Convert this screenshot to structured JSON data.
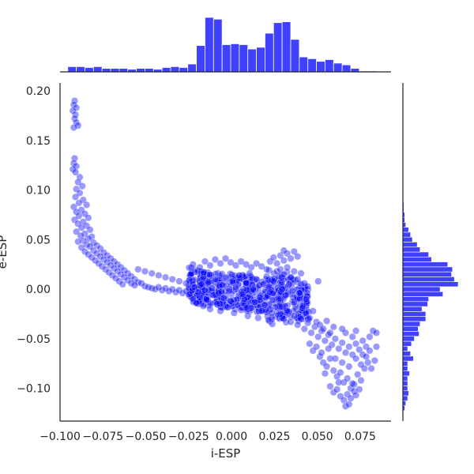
{
  "chart_data": {
    "type": "scatter",
    "subtype": "jointplot with marginal histograms",
    "title": "",
    "xlabel": "i-ESP",
    "ylabel": "e-ESP",
    "xlim": [
      -0.1,
      0.093
    ],
    "ylim": [
      -0.133,
      0.208
    ],
    "xticks": [
      -0.1,
      -0.075,
      -0.05,
      -0.025,
      0.0,
      0.025,
      0.05,
      0.075
    ],
    "xtick_labels": [
      "−0.100",
      "−0.075",
      "−0.050",
      "−0.025",
      "0.000",
      "0.025",
      "0.050",
      "0.075"
    ],
    "yticks": [
      -0.1,
      -0.05,
      0.0,
      0.05,
      0.1,
      0.15,
      0.2
    ],
    "ytick_labels": [
      "−0.10",
      "−0.05",
      "0.00",
      "0.05",
      "0.10",
      "0.15",
      "0.20"
    ],
    "grid": false,
    "legend": "none",
    "colors": {
      "points": "#0000ff",
      "bars": "#0000ff",
      "bar_edge": "#ffffff",
      "axes": "#262626"
    },
    "marker_alpha": 0.4,
    "points": [
      [
        -0.0915,
        0.19
      ],
      [
        -0.092,
        0.186
      ],
      [
        -0.0905,
        0.183
      ],
      [
        -0.0925,
        0.18
      ],
      [
        -0.091,
        0.176
      ],
      [
        -0.0915,
        0.172
      ],
      [
        -0.0905,
        0.168
      ],
      [
        -0.0895,
        0.165
      ],
      [
        -0.092,
        0.163
      ],
      [
        -0.0915,
        0.132
      ],
      [
        -0.092,
        0.127
      ],
      [
        -0.0905,
        0.124
      ],
      [
        -0.0925,
        0.121
      ],
      [
        -0.091,
        0.118
      ],
      [
        -0.0885,
        0.113
      ],
      [
        -0.0895,
        0.108
      ],
      [
        -0.087,
        0.104
      ],
      [
        -0.0905,
        0.101
      ],
      [
        -0.0885,
        0.097
      ],
      [
        -0.091,
        0.093
      ],
      [
        -0.0865,
        0.09
      ],
      [
        -0.089,
        0.087
      ],
      [
        -0.0845,
        0.085
      ],
      [
        -0.092,
        0.083
      ],
      [
        -0.0875,
        0.08
      ],
      [
        -0.0905,
        0.078
      ],
      [
        -0.0855,
        0.076
      ],
      [
        -0.089,
        0.074
      ],
      [
        -0.0835,
        0.072
      ],
      [
        -0.0915,
        0.07
      ],
      [
        -0.0865,
        0.068
      ],
      [
        -0.0895,
        0.066
      ],
      [
        -0.0845,
        0.064
      ],
      [
        -0.0875,
        0.062
      ],
      [
        -0.0825,
        0.06
      ],
      [
        -0.0905,
        0.058
      ],
      [
        -0.0855,
        0.056
      ],
      [
        -0.088,
        0.054
      ],
      [
        -0.0815,
        0.053
      ],
      [
        -0.0835,
        0.051
      ],
      [
        -0.0865,
        0.049
      ],
      [
        -0.0895,
        0.048
      ],
      [
        -0.0805,
        0.047
      ],
      [
        -0.0845,
        0.045
      ],
      [
        -0.0785,
        0.044
      ],
      [
        -0.0825,
        0.043
      ],
      [
        -0.0875,
        0.042
      ],
      [
        -0.0765,
        0.041
      ],
      [
        -0.0805,
        0.039
      ],
      [
        -0.0855,
        0.038
      ],
      [
        -0.0745,
        0.037
      ],
      [
        -0.0785,
        0.036
      ],
      [
        -0.0835,
        0.035
      ],
      [
        -0.0725,
        0.034
      ],
      [
        -0.0765,
        0.033
      ],
      [
        -0.0815,
        0.032
      ],
      [
        -0.0705,
        0.031
      ],
      [
        -0.0745,
        0.03
      ],
      [
        -0.0795,
        0.029
      ],
      [
        -0.0685,
        0.028
      ],
      [
        -0.0725,
        0.027
      ],
      [
        -0.0775,
        0.026
      ],
      [
        -0.0665,
        0.025
      ],
      [
        -0.0705,
        0.024
      ],
      [
        -0.0755,
        0.023
      ],
      [
        -0.0645,
        0.022
      ],
      [
        -0.0685,
        0.021
      ],
      [
        -0.0735,
        0.02
      ],
      [
        -0.0625,
        0.019
      ],
      [
        -0.0665,
        0.018
      ],
      [
        -0.0715,
        0.017
      ],
      [
        -0.0605,
        0.016
      ],
      [
        -0.0645,
        0.015
      ],
      [
        -0.0695,
        0.014
      ],
      [
        -0.0585,
        0.013
      ],
      [
        -0.0625,
        0.012
      ],
      [
        -0.0675,
        0.011
      ],
      [
        -0.0565,
        0.01
      ],
      [
        -0.0605,
        0.009
      ],
      [
        -0.0655,
        0.008
      ],
      [
        -0.0545,
        0.007
      ],
      [
        -0.0585,
        0.006
      ],
      [
        -0.0635,
        0.005
      ],
      [
        -0.0525,
        0.006
      ],
      [
        -0.0565,
        0.004
      ],
      [
        -0.0505,
        0.003
      ],
      [
        -0.0485,
        0.002
      ],
      [
        -0.0465,
        0.001
      ],
      [
        -0.0445,
        0.0
      ],
      [
        -0.0425,
        0.002
      ],
      [
        -0.0405,
        -0.001
      ],
      [
        -0.0385,
        0.001
      ],
      [
        -0.0365,
        -0.002
      ],
      [
        -0.0345,
        0.0
      ],
      [
        -0.0325,
        -0.003
      ],
      [
        -0.0305,
        -0.001
      ],
      [
        -0.0285,
        -0.004
      ],
      [
        -0.0265,
        -0.002
      ],
      [
        -0.0245,
        -0.005
      ],
      [
        -0.0545,
        0.02
      ],
      [
        -0.0505,
        0.018
      ],
      [
        -0.0465,
        0.016
      ],
      [
        -0.0425,
        0.014
      ],
      [
        -0.0385,
        0.012
      ],
      [
        -0.0345,
        0.01
      ],
      [
        -0.0305,
        0.008
      ],
      [
        -0.0265,
        0.006
      ],
      [
        -0.0225,
        0.005
      ],
      [
        -0.0185,
        0.004
      ],
      [
        -0.0225,
        0.025
      ],
      [
        -0.0185,
        0.022
      ],
      [
        -0.0155,
        0.028
      ],
      [
        -0.0125,
        0.024
      ],
      [
        -0.0095,
        0.03
      ],
      [
        -0.0065,
        0.026
      ],
      [
        -0.0035,
        0.031
      ],
      [
        -0.0005,
        0.027
      ],
      [
        0.0025,
        0.024
      ],
      [
        0.0055,
        0.028
      ],
      [
        0.0085,
        0.025
      ],
      [
        0.0115,
        0.022
      ],
      [
        0.0145,
        0.026
      ],
      [
        0.0175,
        0.023
      ],
      [
        0.0205,
        0.02
      ],
      [
        -0.0225,
        -0.01
      ],
      [
        -0.0205,
        -0.014
      ],
      [
        -0.0185,
        -0.008
      ],
      [
        -0.0165,
        -0.017
      ],
      [
        -0.0145,
        -0.011
      ],
      [
        -0.0125,
        -0.02
      ],
      [
        -0.0105,
        -0.006
      ],
      [
        -0.0085,
        -0.015
      ],
      [
        -0.0065,
        -0.022
      ],
      [
        -0.0045,
        -0.009
      ],
      [
        -0.0025,
        -0.018
      ],
      [
        -0.0005,
        -0.012
      ],
      [
        0.0015,
        -0.024
      ],
      [
        0.0035,
        -0.016
      ],
      [
        0.0055,
        -0.021
      ],
      [
        0.0075,
        -0.01
      ],
      [
        0.0095,
        -0.027
      ],
      [
        0.0115,
        -0.019
      ],
      [
        0.0135,
        -0.013
      ],
      [
        0.0155,
        -0.029
      ],
      [
        0.0175,
        -0.022
      ],
      [
        0.0195,
        -0.016
      ],
      [
        0.0215,
        -0.031
      ],
      [
        0.0235,
        -0.024
      ],
      [
        0.0255,
        -0.018
      ],
      [
        -0.0215,
        0.002
      ],
      [
        -0.0195,
        -0.003
      ],
      [
        -0.0175,
        0.005
      ],
      [
        -0.0155,
        -0.001
      ],
      [
        -0.0135,
        0.007
      ],
      [
        -0.0115,
        0.001
      ],
      [
        -0.0095,
        0.01
      ],
      [
        -0.0075,
        -0.004
      ],
      [
        -0.0055,
        0.004
      ],
      [
        -0.0035,
        0.012
      ],
      [
        -0.0015,
        -0.002
      ],
      [
        0.0005,
        0.008
      ],
      [
        0.0025,
        0.002
      ],
      [
        0.0045,
        0.014
      ],
      [
        0.0065,
        -0.005
      ],
      [
        0.0085,
        0.006
      ],
      [
        0.0105,
        0.016
      ],
      [
        0.0125,
        0.0
      ],
      [
        0.0145,
        0.01
      ],
      [
        0.0165,
        -0.008
      ],
      [
        0.0185,
        0.005
      ],
      [
        0.0205,
        0.013
      ],
      [
        0.0225,
        -0.003
      ],
      [
        0.0245,
        0.008
      ],
      [
        0.0265,
        0.018
      ],
      [
        0.0225,
        0.028
      ],
      [
        0.0245,
        0.032
      ],
      [
        0.0265,
        0.026
      ],
      [
        0.0285,
        0.034
      ],
      [
        0.0305,
        0.029
      ],
      [
        0.0325,
        0.036
      ],
      [
        0.0345,
        0.031
      ],
      [
        0.0365,
        0.038
      ],
      [
        0.0385,
        0.033
      ],
      [
        0.0305,
        0.039
      ],
      [
        0.0285,
        0.02
      ],
      [
        0.0305,
        0.015
      ],
      [
        0.0325,
        0.022
      ],
      [
        0.0345,
        0.012
      ],
      [
        0.0365,
        0.018
      ],
      [
        0.0385,
        0.01
      ],
      [
        0.0405,
        0.016
      ],
      [
        0.0425,
        0.006
      ],
      [
        0.0335,
        0.005
      ],
      [
        0.0355,
        -0.002
      ],
      [
        0.0295,
        0.0
      ],
      [
        0.0315,
        -0.006
      ],
      [
        0.0275,
        -0.01
      ],
      [
        0.0395,
        -0.004
      ],
      [
        0.0435,
        -0.01
      ],
      [
        0.0505,
        0.008
      ],
      [
        0.0285,
        -0.025
      ],
      [
        0.0305,
        -0.03
      ],
      [
        0.0325,
        -0.022
      ],
      [
        0.0345,
        -0.033
      ],
      [
        0.0365,
        -0.027
      ],
      [
        0.0385,
        -0.036
      ],
      [
        0.0405,
        -0.03
      ],
      [
        0.0425,
        -0.04
      ],
      [
        0.0445,
        -0.034
      ],
      [
        0.0465,
        -0.044
      ],
      [
        0.0485,
        -0.038
      ],
      [
        0.0505,
        -0.048
      ],
      [
        0.0525,
        -0.042
      ],
      [
        0.0545,
        -0.052
      ],
      [
        0.0565,
        -0.046
      ],
      [
        0.0585,
        -0.056
      ],
      [
        0.0605,
        -0.05
      ],
      [
        0.0625,
        -0.06
      ],
      [
        0.0645,
        -0.054
      ],
      [
        0.0665,
        -0.064
      ],
      [
        0.0685,
        -0.058
      ],
      [
        0.0705,
        -0.066
      ],
      [
        0.0725,
        -0.055
      ],
      [
        0.0745,
        -0.061
      ],
      [
        0.0765,
        -0.052
      ],
      [
        0.0785,
        -0.058
      ],
      [
        0.0805,
        -0.048
      ],
      [
        0.0825,
        -0.042
      ],
      [
        0.0845,
        -0.044
      ],
      [
        0.0455,
        -0.055
      ],
      [
        0.0475,
        -0.062
      ],
      [
        0.0495,
        -0.058
      ],
      [
        0.0515,
        -0.068
      ],
      [
        0.0535,
        -0.074
      ],
      [
        0.0555,
        -0.078
      ],
      [
        0.0575,
        -0.07
      ],
      [
        0.0595,
        -0.082
      ],
      [
        0.0615,
        -0.088
      ],
      [
        0.0635,
        -0.084
      ],
      [
        0.0655,
        -0.094
      ],
      [
        0.0675,
        -0.09
      ],
      [
        0.0695,
        -0.1
      ],
      [
        0.0715,
        -0.096
      ],
      [
        0.0735,
        -0.086
      ],
      [
        0.0755,
        -0.092
      ],
      [
        0.0775,
        -0.08
      ],
      [
        0.0795,
        -0.074
      ],
      [
        0.0815,
        -0.08
      ],
      [
        0.0835,
        -0.072
      ],
      [
        0.0575,
        -0.098
      ],
      [
        0.0595,
        -0.104
      ],
      [
        0.0615,
        -0.101
      ],
      [
        0.0635,
        -0.108
      ],
      [
        0.0655,
        -0.112
      ],
      [
        0.0675,
        -0.106
      ],
      [
        0.0695,
        -0.11
      ],
      [
        0.0715,
        -0.103
      ],
      [
        0.0665,
        -0.118
      ],
      [
        0.0685,
        -0.116
      ],
      [
        0.0725,
        -0.107
      ],
      [
        0.0745,
        -0.101
      ],
      [
        0.0705,
        -0.095
      ],
      [
        0.0625,
        -0.094
      ],
      [
        0.0545,
        -0.085
      ],
      [
        0.0525,
        -0.064
      ],
      [
        0.0565,
        -0.06
      ],
      [
        0.0605,
        -0.07
      ],
      [
        0.0645,
        -0.074
      ],
      [
        0.0685,
        -0.078
      ],
      [
        0.0725,
        -0.07
      ],
      [
        0.0765,
        -0.066
      ],
      [
        0.0805,
        -0.062
      ],
      [
        0.0845,
        -0.058
      ],
      [
        0.0755,
        -0.076
      ],
      [
        0.0415,
        -0.017
      ],
      [
        0.0435,
        -0.024
      ],
      [
        0.0455,
        -0.029
      ],
      [
        0.0475,
        -0.022
      ],
      [
        0.0495,
        -0.033
      ],
      [
        0.0515,
        -0.036
      ],
      [
        0.0535,
        -0.04
      ],
      [
        0.0555,
        -0.032
      ],
      [
        0.0575,
        -0.044
      ],
      [
        0.0595,
        -0.038
      ],
      [
        0.0665,
        -0.044
      ],
      [
        0.0705,
        -0.048
      ],
      [
        0.0645,
        -0.04
      ],
      [
        0.0725,
        -0.042
      ],
      [
        0.0785,
        -0.068
      ]
    ],
    "bulk_cloud": {
      "center": [
        0.005,
        -0.003
      ],
      "note": "dense blob of overlapping points spanning i-ESP -0.025..0.045 and e-ESP -0.035..0.035"
    },
    "marginal_x_hist": {
      "bin_start": -0.0955,
      "bin_width": 0.005,
      "counts": [
        6,
        6,
        5,
        6,
        4,
        4,
        4,
        3,
        4,
        4,
        3,
        5,
        6,
        5,
        9,
        30,
        62,
        60,
        31,
        32,
        31,
        26,
        28,
        44,
        56,
        57,
        37,
        17,
        15,
        12,
        14,
        10,
        8,
        4,
        1,
        1
      ]
    },
    "marginal_y_hist": {
      "bin_start": -0.1225,
      "bin_width": 0.005,
      "counts": [
        2,
        3,
        5,
        6,
        5,
        5,
        5,
        7,
        5,
        5,
        11,
        8,
        5,
        9,
        12,
        17,
        16,
        18,
        24,
        24,
        20,
        26,
        27,
        42,
        39,
        58,
        54,
        51,
        52,
        47,
        30,
        27,
        18,
        15,
        10,
        8,
        6,
        3,
        2,
        2,
        1,
        1
      ]
    }
  }
}
